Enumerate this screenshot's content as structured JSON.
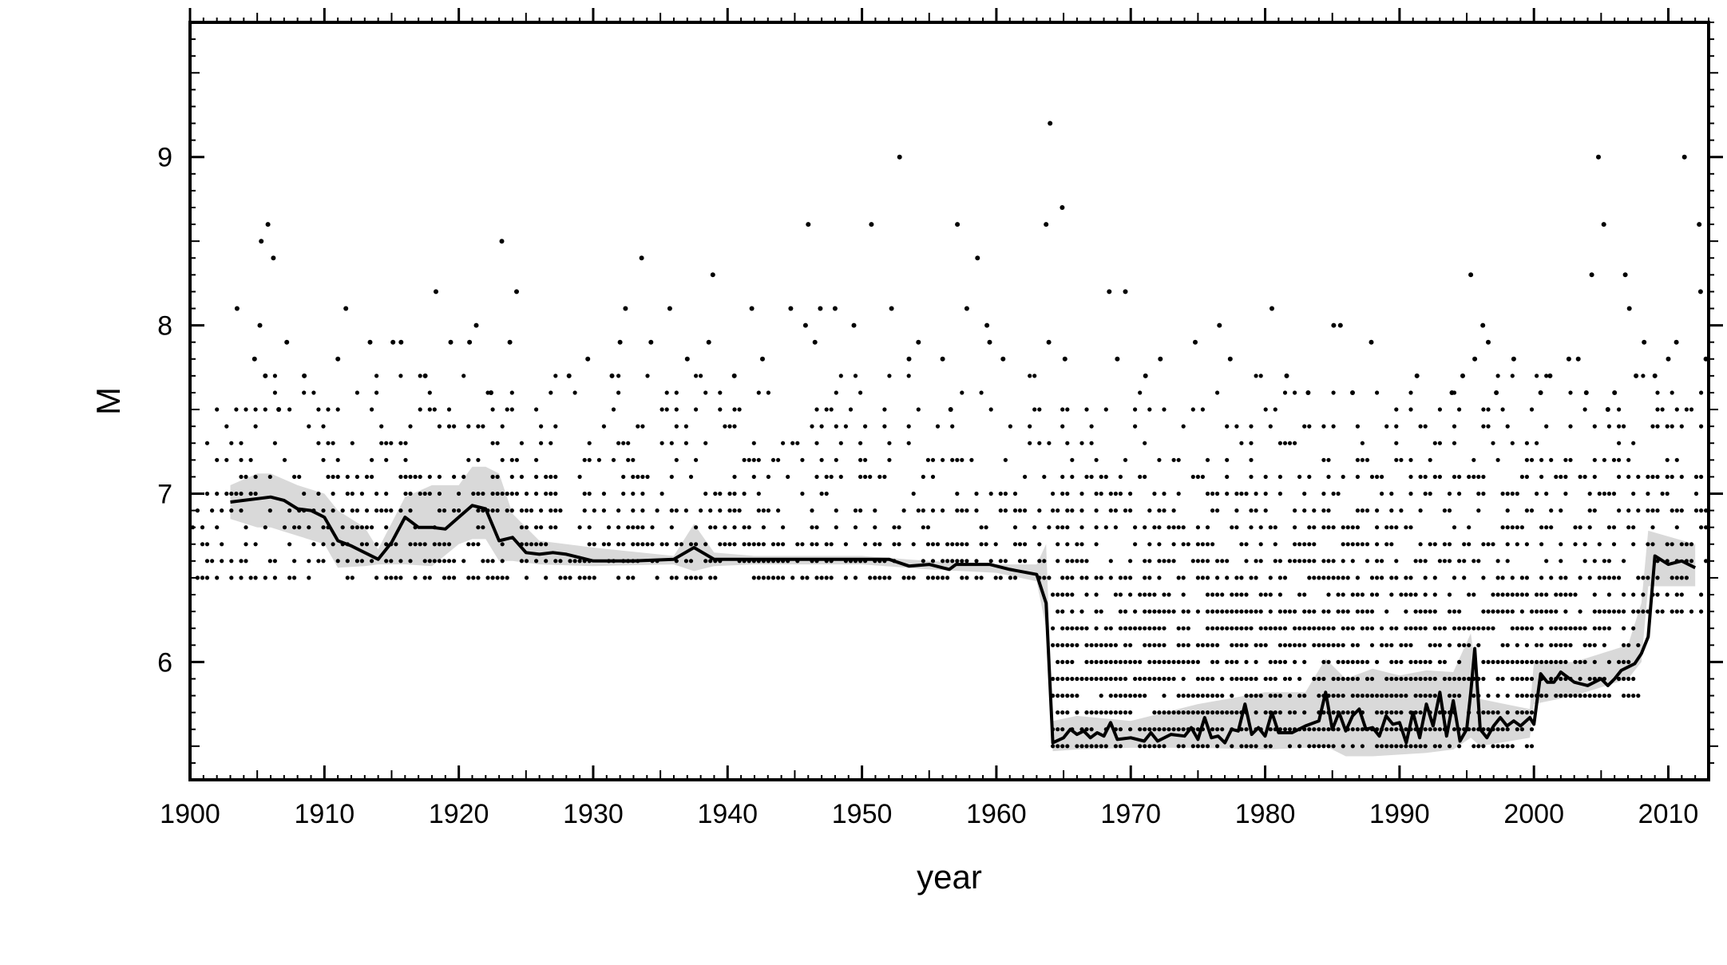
{
  "chart_data": {
    "type": "scatter",
    "title": "",
    "xlabel": "year",
    "ylabel": "M",
    "xlim": [
      1900,
      2013
    ],
    "ylim": [
      5.3,
      9.8
    ],
    "grid": false,
    "legend": "none",
    "colors": {
      "points": "#000000",
      "line": "#000000",
      "band": "#d9d9d9"
    },
    "x_ticks": [
      1900,
      1910,
      1920,
      1930,
      1940,
      1950,
      1960,
      1970,
      1980,
      1990,
      2000,
      2010
    ],
    "y_ticks": [
      6,
      7,
      8,
      9
    ],
    "points": [
      [
        1903.5,
        8.1
      ],
      [
        1904.8,
        7.8
      ],
      [
        1905.2,
        8.0
      ],
      [
        1905.3,
        8.5
      ],
      [
        1905.8,
        8.6
      ],
      [
        1906.2,
        8.4
      ],
      [
        1905.6,
        7.7
      ],
      [
        1906.6,
        7.5
      ],
      [
        1907.2,
        7.9
      ],
      [
        1908.5,
        7.7
      ],
      [
        1911.0,
        7.8
      ],
      [
        1911.6,
        8.1
      ],
      [
        1913.4,
        7.9
      ],
      [
        1915.1,
        7.9
      ],
      [
        1915.7,
        7.9
      ],
      [
        1917.5,
        7.7
      ],
      [
        1918.3,
        8.2
      ],
      [
        1919.4,
        7.9
      ],
      [
        1920.8,
        7.9
      ],
      [
        1921.3,
        8.0
      ],
      [
        1922.4,
        7.6
      ],
      [
        1923.2,
        8.5
      ],
      [
        1923.8,
        7.9
      ],
      [
        1924.3,
        8.2
      ],
      [
        1928.2,
        7.7
      ],
      [
        1929.6,
        7.8
      ],
      [
        1931.4,
        7.7
      ],
      [
        1932.0,
        7.9
      ],
      [
        1932.4,
        8.1
      ],
      [
        1933.6,
        8.4
      ],
      [
        1934.3,
        7.9
      ],
      [
        1935.7,
        8.1
      ],
      [
        1937.0,
        7.8
      ],
      [
        1938.9,
        8.3
      ],
      [
        1938.6,
        7.9
      ],
      [
        1940.5,
        7.7
      ],
      [
        1941.8,
        8.1
      ],
      [
        1942.6,
        7.8
      ],
      [
        1944.7,
        8.1
      ],
      [
        1946.0,
        8.6
      ],
      [
        1945.8,
        8.0
      ],
      [
        1946.5,
        7.9
      ],
      [
        1946.9,
        8.1
      ],
      [
        1948.0,
        8.1
      ],
      [
        1949.4,
        8.0
      ],
      [
        1950.7,
        8.6
      ],
      [
        1952.2,
        8.1
      ],
      [
        1952.8,
        9.0
      ],
      [
        1953.5,
        7.8
      ],
      [
        1954.2,
        7.9
      ],
      [
        1956.0,
        7.8
      ],
      [
        1956.6,
        7.5
      ],
      [
        1957.1,
        8.6
      ],
      [
        1957.8,
        8.1
      ],
      [
        1958.6,
        8.4
      ],
      [
        1959.3,
        8.0
      ],
      [
        1959.5,
        7.9
      ],
      [
        1960.5,
        7.8
      ],
      [
        1963.7,
        8.6
      ],
      [
        1964.0,
        9.2
      ],
      [
        1963.9,
        7.9
      ],
      [
        1964.9,
        8.7
      ],
      [
        1965.1,
        7.8
      ],
      [
        1968.4,
        8.2
      ],
      [
        1969.6,
        8.2
      ],
      [
        1969.0,
        7.8
      ],
      [
        1971.1,
        7.7
      ],
      [
        1972.2,
        7.8
      ],
      [
        1974.8,
        7.9
      ],
      [
        1976.6,
        8.0
      ],
      [
        1977.4,
        7.8
      ],
      [
        1980.5,
        8.1
      ],
      [
        1981.6,
        7.7
      ],
      [
        1983.2,
        7.6
      ],
      [
        1985.1,
        8.0
      ],
      [
        1985.6,
        8.0
      ],
      [
        1986.5,
        7.6
      ],
      [
        1987.9,
        7.9
      ],
      [
        1991.3,
        7.7
      ],
      [
        1993.9,
        7.6
      ],
      [
        1994.7,
        7.7
      ],
      [
        1995.3,
        8.3
      ],
      [
        1995.6,
        7.8
      ],
      [
        1996.2,
        8.0
      ],
      [
        1996.6,
        7.9
      ],
      [
        1997.2,
        7.6
      ],
      [
        1998.5,
        7.8
      ],
      [
        2000.5,
        7.6
      ],
      [
        2001.2,
        7.7
      ],
      [
        2002.6,
        7.8
      ],
      [
        2003.3,
        7.8
      ],
      [
        2003.9,
        7.6
      ],
      [
        2004.3,
        8.3
      ],
      [
        2004.8,
        9.0
      ],
      [
        2005.2,
        8.6
      ],
      [
        2005.5,
        7.5
      ],
      [
        2006.0,
        7.6
      ],
      [
        2006.8,
        8.3
      ],
      [
        2007.1,
        8.1
      ],
      [
        2007.6,
        7.7
      ],
      [
        2008.2,
        7.9
      ],
      [
        2009.0,
        7.7
      ],
      [
        2010.0,
        7.8
      ],
      [
        2010.6,
        7.9
      ],
      [
        2011.2,
        9.0
      ],
      [
        2012.3,
        8.6
      ],
      [
        2012.4,
        8.2
      ],
      [
        2012.8,
        7.8
      ]
    ],
    "dense_points": {
      "periods": [
        {
          "x_range": [
            1900,
            1964
          ],
          "magnitudes": [
            6.5,
            6.6,
            6.7,
            6.8,
            6.9,
            7.0,
            7.1,
            7.2,
            7.3,
            7.4,
            7.5,
            7.6,
            7.7
          ]
        },
        {
          "x_range": [
            1964,
            2013
          ],
          "magnitudes": [
            6.3,
            6.4,
            6.5,
            6.6,
            6.7,
            6.8,
            6.9,
            7.0,
            7.1,
            7.2,
            7.3,
            7.4,
            7.5,
            7.6,
            7.7
          ]
        },
        {
          "x_range": [
            1964,
            2000
          ],
          "magnitudes": [
            5.5,
            5.6,
            5.7,
            5.8,
            5.9,
            6.0,
            6.1,
            6.2
          ]
        },
        {
          "x_range": [
            2000,
            2008
          ],
          "magnitudes": [
            5.8,
            5.9,
            6.0,
            6.1,
            6.2
          ]
        }
      ]
    },
    "series": [
      {
        "type": "line",
        "x": [
          1903,
          1904,
          1905,
          1906,
          1907,
          1908,
          1909,
          1910,
          1911,
          1912,
          1913,
          1914,
          1915,
          1916,
          1917,
          1918,
          1919,
          1920,
          1921,
          1922,
          1923,
          1924,
          1925,
          1926,
          1927,
          1928,
          1929,
          1930,
          1931,
          1933,
          1936,
          1937.5,
          1939,
          1942,
          1946,
          1950,
          1952,
          1953.5,
          1955,
          1956.5,
          1957,
          1959.5,
          1961,
          1963,
          1963.7,
          1964.2,
          1965,
          1965.5,
          1966,
          1966.5,
          1967,
          1967.5,
          1968,
          1968.5,
          1969,
          1970,
          1971,
          1971.5,
          1972,
          1973,
          1974,
          1974.5,
          1975,
          1975.5,
          1976,
          1976.5,
          1977,
          1977.5,
          1978,
          1978.5,
          1979,
          1979.5,
          1980,
          1980.5,
          1981,
          1982,
          1983,
          1984,
          1984.5,
          1985,
          1985.5,
          1986,
          1986.5,
          1987,
          1987.5,
          1988,
          1988.5,
          1989,
          1989.5,
          1990,
          1990.5,
          1991,
          1991.5,
          1992,
          1992.5,
          1993,
          1993.5,
          1994,
          1994.5,
          1995,
          1995.3,
          1995.6,
          1996,
          1996.5,
          1997,
          1997.5,
          1998,
          1998.5,
          1999,
          1999.7,
          2000,
          2000.5,
          2001,
          2001.5,
          2002,
          2003,
          2004,
          2004.5,
          2005,
          2005.5,
          2006,
          2006.5,
          2007,
          2007.5,
          2008,
          2008.5,
          2009,
          2010,
          2011,
          2012
        ],
        "values": [
          6.95,
          6.96,
          6.97,
          6.98,
          6.96,
          6.91,
          6.9,
          6.86,
          6.72,
          6.69,
          6.65,
          6.61,
          6.71,
          6.86,
          6.8,
          6.8,
          6.79,
          6.86,
          6.93,
          6.91,
          6.72,
          6.74,
          6.65,
          6.64,
          6.65,
          6.64,
          6.62,
          6.6,
          6.6,
          6.6,
          6.61,
          6.68,
          6.61,
          6.61,
          6.61,
          6.61,
          6.61,
          6.57,
          6.58,
          6.55,
          6.58,
          6.58,
          6.55,
          6.52,
          6.35,
          5.52,
          5.55,
          5.6,
          5.57,
          5.59,
          5.55,
          5.58,
          5.56,
          5.64,
          5.54,
          5.55,
          5.53,
          5.58,
          5.53,
          5.57,
          5.56,
          5.61,
          5.54,
          5.67,
          5.55,
          5.56,
          5.52,
          5.6,
          5.59,
          5.75,
          5.57,
          5.61,
          5.56,
          5.7,
          5.58,
          5.58,
          5.62,
          5.65,
          5.82,
          5.6,
          5.7,
          5.59,
          5.68,
          5.72,
          5.6,
          5.61,
          5.56,
          5.68,
          5.63,
          5.64,
          5.52,
          5.7,
          5.55,
          5.75,
          5.62,
          5.82,
          5.56,
          5.77,
          5.53,
          5.6,
          5.82,
          6.08,
          5.6,
          5.55,
          5.62,
          5.67,
          5.62,
          5.65,
          5.62,
          5.67,
          5.63,
          5.93,
          5.88,
          5.88,
          5.94,
          5.88,
          5.86,
          5.88,
          5.9,
          5.86,
          5.9,
          5.95,
          5.97,
          5.99,
          6.05,
          6.15,
          6.63,
          6.58,
          6.6,
          6.56
        ]
      },
      {
        "type": "area",
        "x": [
          1903,
          1905,
          1906,
          1908,
          1910,
          1911,
          1913,
          1914,
          1916,
          1918,
          1920,
          1921,
          1922,
          1923,
          1924,
          1926,
          1930,
          1936,
          1937.5,
          1939,
          1942,
          1950,
          1955,
          1960,
          1963,
          1963.7,
          1964.2,
          1966,
          1970,
          1975,
          1980,
          1983,
          1984.5,
          1986,
          1988,
          1990,
          1992,
          1994,
          1995.3,
          1996,
          1999.7,
          2000,
          2003,
          2007,
          2008,
          2008.5,
          2012
        ],
        "lower": [
          6.85,
          6.8,
          6.8,
          6.75,
          6.7,
          6.56,
          6.57,
          6.58,
          6.58,
          6.57,
          6.7,
          6.73,
          6.73,
          6.6,
          6.6,
          6.58,
          6.57,
          6.58,
          6.54,
          6.57,
          6.58,
          6.58,
          6.55,
          6.53,
          6.48,
          6.2,
          5.47,
          5.48,
          5.49,
          5.49,
          5.48,
          5.49,
          5.5,
          5.44,
          5.44,
          5.45,
          5.46,
          5.48,
          5.55,
          5.5,
          5.55,
          5.75,
          5.8,
          5.9,
          6.0,
          6.45,
          6.45
        ],
        "upper": [
          7.05,
          7.12,
          7.12,
          7.05,
          7.0,
          6.9,
          6.8,
          6.67,
          6.98,
          7.05,
          7.05,
          7.16,
          7.16,
          7.12,
          6.88,
          6.72,
          6.68,
          6.63,
          6.82,
          6.65,
          6.63,
          6.63,
          6.6,
          6.58,
          6.58,
          6.7,
          5.65,
          5.68,
          5.65,
          5.75,
          5.82,
          5.82,
          6.02,
          5.9,
          5.96,
          5.92,
          5.95,
          5.94,
          6.17,
          5.78,
          5.72,
          6.0,
          6.0,
          6.1,
          6.35,
          6.78,
          6.7
        ]
      }
    ]
  }
}
